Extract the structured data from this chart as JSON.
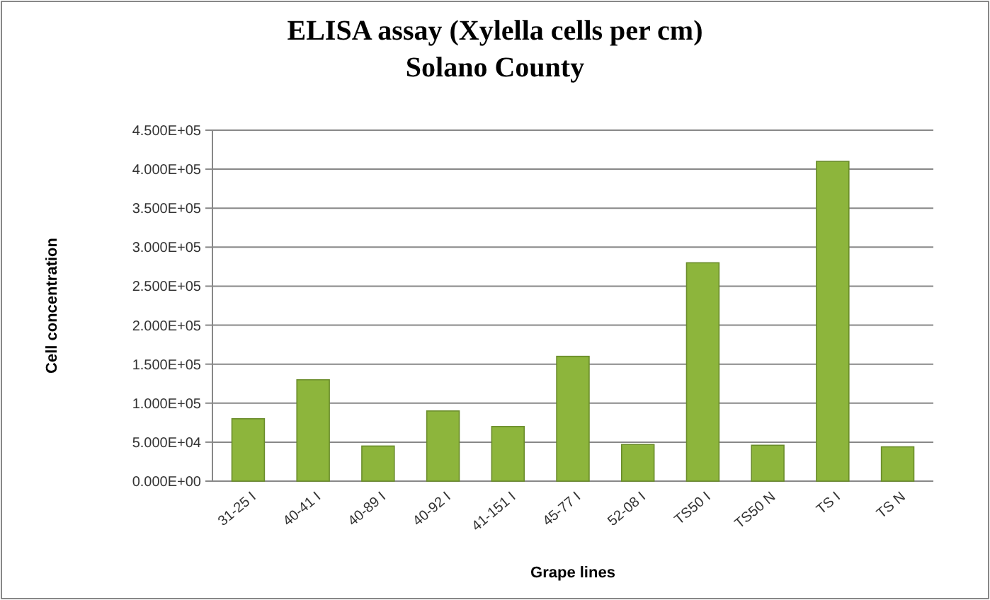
{
  "chart_data": {
    "type": "bar",
    "title": "ELISA assay (Xylella cells per cm)",
    "subtitle": "Solano County",
    "xlabel": "Grape lines",
    "ylabel": "Cell concentration",
    "categories": [
      "31-25 I",
      "40-41 I",
      "40-89 I",
      "40-92 I",
      "41-151 I",
      "45-77 I",
      "52-08 I",
      "TS50 I",
      "TS50 N",
      "TS I",
      "TS N"
    ],
    "values": [
      80000,
      130000,
      45000,
      90000,
      70000,
      160000,
      47000,
      280000,
      46000,
      410000,
      44000
    ],
    "color": "#8db53c",
    "ylim": [
      0,
      450000
    ],
    "yticks": [
      {
        "value": 0,
        "label": "0.000E+00"
      },
      {
        "value": 50000,
        "label": "5.000E+04"
      },
      {
        "value": 100000,
        "label": "1.000E+05"
      },
      {
        "value": 150000,
        "label": "1.500E+05"
      },
      {
        "value": 200000,
        "label": "2.000E+05"
      },
      {
        "value": 250000,
        "label": "2.500E+05"
      },
      {
        "value": 300000,
        "label": "3.000E+05"
      },
      {
        "value": 350000,
        "label": "3.500E+05"
      },
      {
        "value": 400000,
        "label": "4.000E+05"
      },
      {
        "value": 450000,
        "label": "4.500E+05"
      }
    ],
    "grid": true
  }
}
